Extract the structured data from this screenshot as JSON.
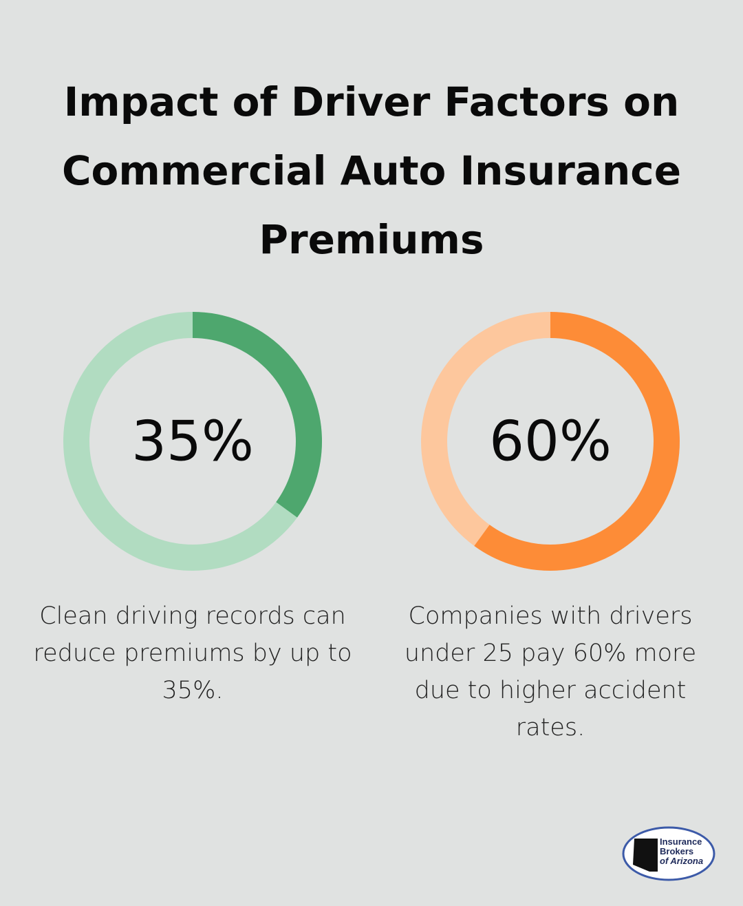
{
  "title": "Impact of Driver Factors on Commercial Auto Insurance Premiums",
  "chart_data": [
    {
      "type": "donut",
      "values": [
        35
      ],
      "value_labels": [
        "35%"
      ],
      "color": "#4ea76e",
      "track_color": "#b1dcc1",
      "caption": "Clean driving records can reduce premiums by up to 35%."
    },
    {
      "type": "donut",
      "values": [
        60
      ],
      "value_labels": [
        "60%"
      ],
      "color": "#fd8c37",
      "track_color": "#fdc79d",
      "caption": "Companies with drivers under 25 pay 60% more due to higher accident rates."
    }
  ],
  "logo": {
    "lines": [
      "Insurance",
      "Brokers",
      "of Arizona"
    ]
  }
}
